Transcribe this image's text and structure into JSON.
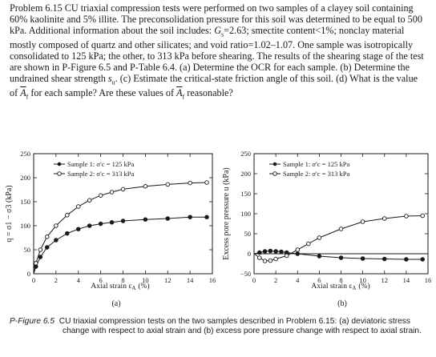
{
  "problem": {
    "label": "Problem 6.15",
    "text_1": "CU triaxial compression tests were performed on two samples of a clayey soil containing 60% kaolinite and 5% illite. The preconsolidation pressure for this soil was determined to be equal to 500 kPa. Additional information about the soil includes: ",
    "text_2": "2.63; smectite content<1%; nonclay material mostly composed of quartz and other silicates; and void ratio=1.02–1.07. One sample was isotropically consolidated to 125 kPa; the other, to 313 kPa before shearing. The results of the shearing stage of the test are shown in P-Figure 6.5 and P-Table 6.4. (a) Determine the OCR for each sample. (b) Determine the undrained shear strength ",
    "text_3": ". (c) Estimate the critical-state friction angle of this soil. (d) What is the value of ",
    "text_4": " for each sample? Are these values of ",
    "text_5": " reasonable?",
    "gs_symbol": "G",
    "gs_sub": "s",
    "su_symbol": "s",
    "su_sub": "u",
    "af_symbol": "A",
    "af_sub": "f"
  },
  "panel_a": {
    "y_ticks": [
      "250",
      "200",
      "150",
      "100",
      "50",
      "0"
    ],
    "x_ticks": [
      "0",
      "2",
      "4",
      "6",
      "8",
      "10",
      "12",
      "14",
      "16"
    ],
    "ylabel": "q = σ1 − σ3 (kPa)",
    "xlabel": "Axial strain ε",
    "xlabel_sub": "A",
    "xlabel_unit": "(%)",
    "legend_1": "Sample 1: σ′c = 125 kPa",
    "legend_2": "Sample 2: σ′c = 313 kPa",
    "panel_label": "(a)"
  },
  "panel_b": {
    "y_ticks": [
      "250",
      "200",
      "150",
      "100",
      "50",
      "0",
      "−50"
    ],
    "x_ticks": [
      "0",
      "2",
      "4",
      "6",
      "8",
      "10",
      "12",
      "14",
      "16"
    ],
    "ylabel": "Excess pore pressure u (kPa)",
    "xlabel": "Axial strain ε",
    "xlabel_sub": "A",
    "xlabel_unit": "(%)",
    "legend_1": "Sample 1: σ′c = 125 kPa",
    "legend_2": "Sample 2: σ′c = 313 kPa",
    "panel_label": "(b)"
  },
  "caption": {
    "fig_label": "P-Figure 6.5",
    "text": "CU triaxial compression tests on the two samples described in Problem 6.15: (a) deviatoric stress change with respect to axial strain and (b) excess pore pressure change with respect to axial strain."
  },
  "chart_data": [
    {
      "type": "line",
      "xlabel": "Axial strain εA (%)",
      "ylabel": "q = σ1 − σ3 (kPa)",
      "xlim": [
        0,
        16
      ],
      "ylim": [
        0,
        250
      ],
      "series": [
        {
          "name": "Sample 1: σ′c = 125 kPa",
          "marker": "filled",
          "x": [
            0,
            0.2,
            0.6,
            1.2,
            2,
            3,
            4,
            5,
            6,
            7,
            8,
            10,
            12,
            14,
            15.5
          ],
          "y": [
            0,
            15,
            35,
            55,
            70,
            84,
            93,
            100,
            104,
            107,
            110,
            113,
            115,
            118,
            118
          ]
        },
        {
          "name": "Sample 2: σ′c = 313 kPa",
          "marker": "open",
          "x": [
            0,
            0.2,
            0.6,
            1.2,
            2,
            3,
            4,
            5,
            6,
            7,
            8,
            10,
            12,
            14,
            15.5
          ],
          "y": [
            0,
            22,
            50,
            77,
            100,
            122,
            140,
            153,
            163,
            170,
            176,
            182,
            186,
            189,
            190
          ]
        }
      ]
    },
    {
      "type": "line",
      "xlabel": "Axial strain εA (%)",
      "ylabel": "Excess pore pressure u (kPa)",
      "xlim": [
        0,
        16
      ],
      "ylim": [
        -50,
        250
      ],
      "series": [
        {
          "name": "Sample 1: σ′c = 125 kPa",
          "marker": "filled",
          "x": [
            0,
            0.5,
            1,
            1.5,
            2,
            2.5,
            3,
            4,
            6,
            8,
            10,
            12,
            14,
            15.5
          ],
          "y": [
            0,
            3,
            6,
            7,
            6,
            5,
            3,
            0,
            -6,
            -10,
            -12,
            -13,
            -14,
            -14
          ]
        },
        {
          "name": "Sample 2: σ′c = 313 kPa",
          "marker": "open",
          "x": [
            0,
            0.5,
            1,
            1.5,
            2,
            3,
            4,
            5,
            6,
            8,
            10,
            12,
            14,
            15.5
          ],
          "y": [
            0,
            -10,
            -18,
            -17,
            -13,
            -5,
            10,
            25,
            40,
            62,
            80,
            88,
            94,
            95
          ]
        }
      ]
    }
  ]
}
